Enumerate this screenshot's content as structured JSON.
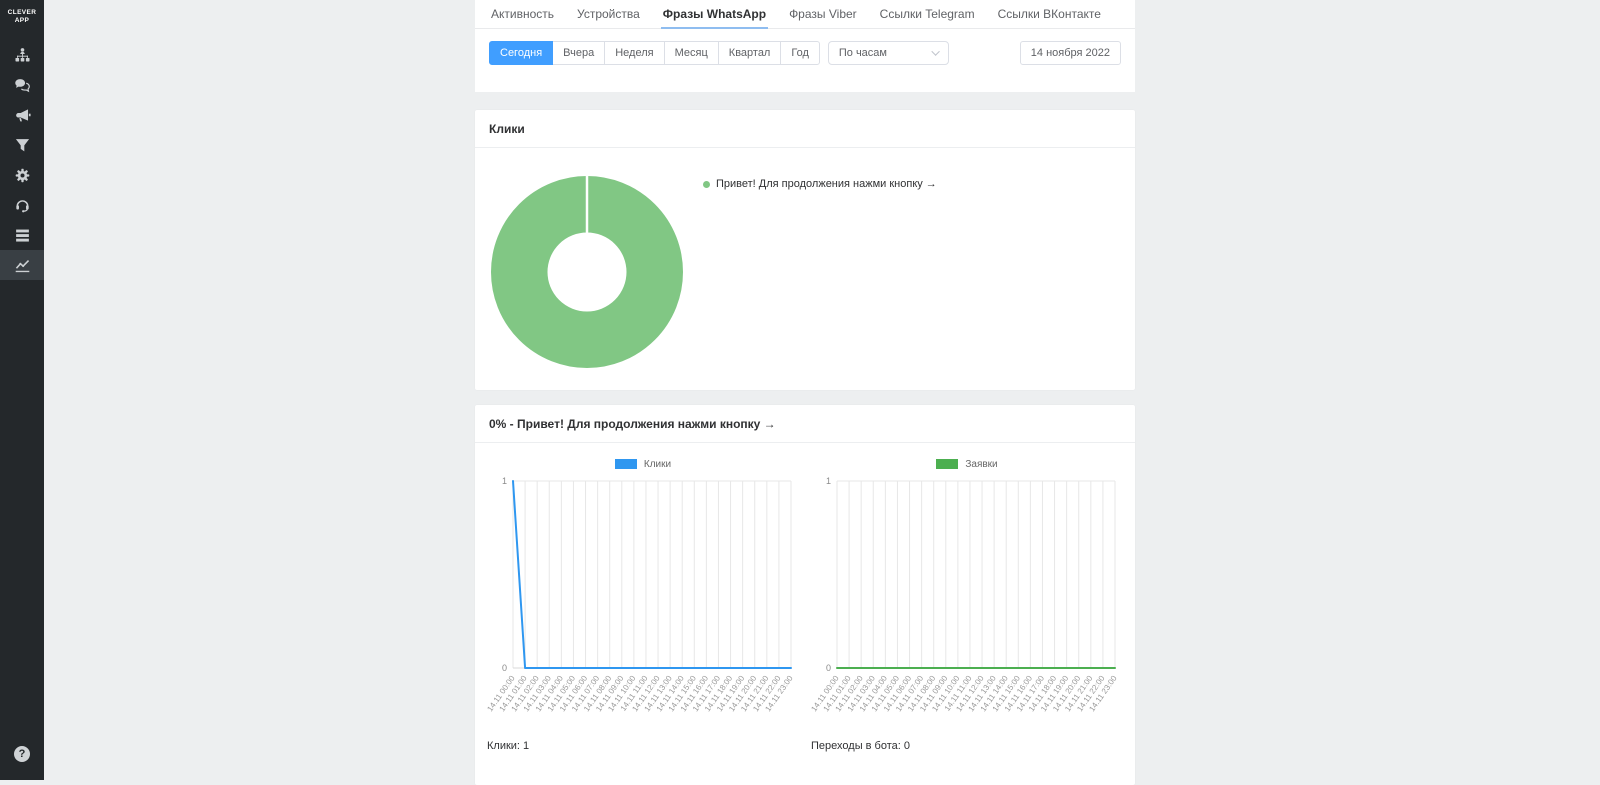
{
  "sidebar": {
    "logo": "CLEVER\nAPP",
    "items": [
      {
        "icon": "funnel-builder-icon"
      },
      {
        "icon": "chats-icon"
      },
      {
        "icon": "broadcasts-icon"
      },
      {
        "icon": "filter-icon"
      },
      {
        "icon": "settings-icon"
      },
      {
        "icon": "support-icon"
      },
      {
        "icon": "lists-icon"
      },
      {
        "icon": "analytics-icon",
        "active": true
      }
    ],
    "help_label": "?"
  },
  "tabs": {
    "items": [
      {
        "label": "Активность",
        "active": false
      },
      {
        "label": "Устройства",
        "active": false
      },
      {
        "label": "Фразы WhatsApp",
        "active": true
      },
      {
        "label": "Фразы Viber",
        "active": false
      },
      {
        "label": "Ссылки Telegram",
        "active": false
      },
      {
        "label": "Ссылки ВКонтакте",
        "active": false
      }
    ]
  },
  "filters": {
    "periods": [
      "Сегодня",
      "Вчера",
      "Неделя",
      "Месяц",
      "Квартал",
      "Год"
    ],
    "active_period": "Сегодня",
    "granularity_value": "По часам",
    "date_value": "14 ноября 2022"
  },
  "clicks_card": {
    "title": "Клики",
    "legend_label": "Привет! Для продолжения нажми кнопку →"
  },
  "phrase_card": {
    "title": "0% - Привет! Для продолжения нажми кнопку →",
    "left_total": "Клики: 1",
    "right_total": "Переходы в бота: 0"
  },
  "colors": {
    "primary_blue": "#409eff",
    "donut_green": "#81c784",
    "line_blue": "#2f97f0",
    "line_green": "#4caf50",
    "sidebar_bg": "#24282b"
  },
  "chart_data": [
    {
      "type": "pie",
      "donut": true,
      "title": "Клики",
      "labels": [
        "Привет! Для продолжения нажми кнопку →"
      ],
      "values": [
        100
      ],
      "colors": [
        "#81c784"
      ],
      "legend_position": "right"
    },
    {
      "type": "line",
      "name": "Клики",
      "color": "#2f97f0",
      "ylim": [
        0,
        1
      ],
      "x": [
        "14.11 00:00",
        "14.11 01:00",
        "14.11 02:00",
        "14.11 03:00",
        "14.11 04:00",
        "14.11 05:00",
        "14.11 06:00",
        "14.11 07:00",
        "14.11 08:00",
        "14.11 09:00",
        "14.11 10:00",
        "14.11 11:00",
        "14.11 12:00",
        "14.11 13:00",
        "14.11 14:00",
        "14.11 15:00",
        "14.11 16:00",
        "14.11 17:00",
        "14.11 18:00",
        "14.11 19:00",
        "14.11 20:00",
        "14.11 21:00",
        "14.11 22:00",
        "14.11 23:00"
      ],
      "values": [
        1,
        0,
        0,
        0,
        0,
        0,
        0,
        0,
        0,
        0,
        0,
        0,
        0,
        0,
        0,
        0,
        0,
        0,
        0,
        0,
        0,
        0,
        0,
        0
      ],
      "grid": true,
      "legend_position": "top"
    },
    {
      "type": "line",
      "name": "Заявки",
      "color": "#4caf50",
      "ylim": [
        0,
        1
      ],
      "x": [
        "14.11 00:00",
        "14.11 01:00",
        "14.11 02:00",
        "14.11 03:00",
        "14.11 04:00",
        "14.11 05:00",
        "14.11 06:00",
        "14.11 07:00",
        "14.11 08:00",
        "14.11 09:00",
        "14.11 10:00",
        "14.11 11:00",
        "14.11 12:00",
        "14.11 13:00",
        "14.11 14:00",
        "14.11 15:00",
        "14.11 16:00",
        "14.11 17:00",
        "14.11 18:00",
        "14.11 19:00",
        "14.11 20:00",
        "14.11 21:00",
        "14.11 22:00",
        "14.11 23:00"
      ],
      "values": [
        0,
        0,
        0,
        0,
        0,
        0,
        0,
        0,
        0,
        0,
        0,
        0,
        0,
        0,
        0,
        0,
        0,
        0,
        0,
        0,
        0,
        0,
        0,
        0
      ],
      "grid": true,
      "legend_position": "top"
    }
  ]
}
